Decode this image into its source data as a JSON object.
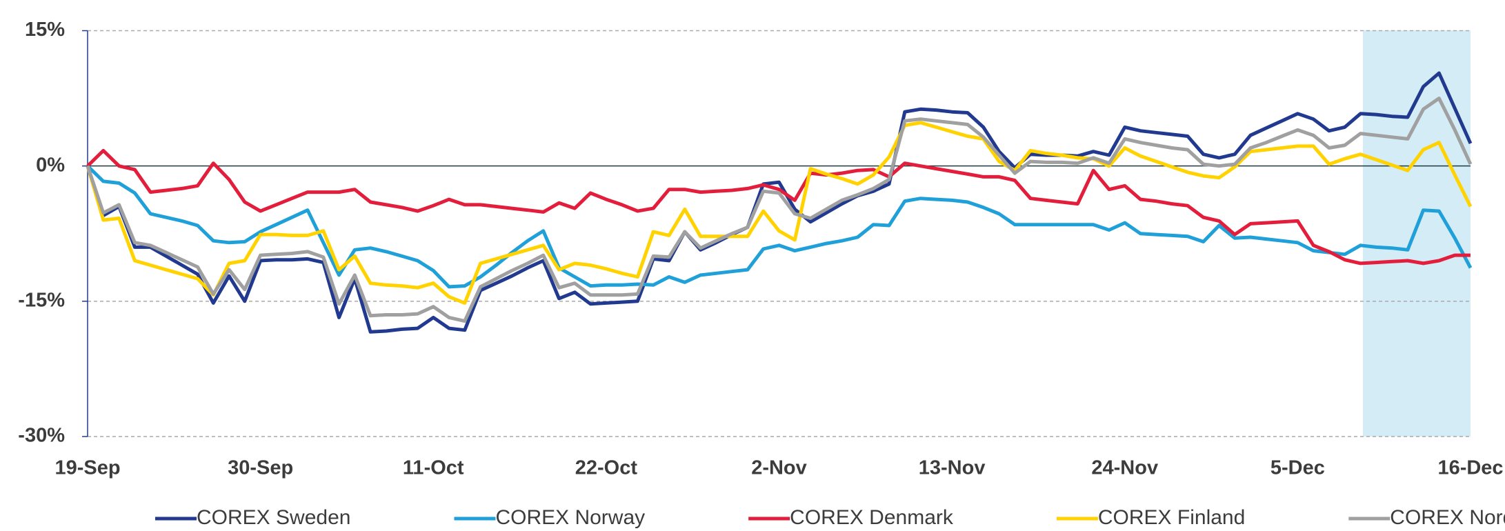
{
  "chart_data": {
    "type": "line",
    "categories": [
      "19-Sep",
      null,
      null,
      null,
      null,
      null,
      null,
      null,
      null,
      null,
      null,
      "30-Sep",
      null,
      null,
      null,
      null,
      null,
      null,
      null,
      null,
      null,
      null,
      "11-Oct",
      null,
      null,
      null,
      null,
      null,
      null,
      null,
      null,
      null,
      null,
      "22-Oct",
      null,
      null,
      null,
      null,
      null,
      null,
      null,
      null,
      null,
      null,
      "2-Nov",
      null,
      null,
      null,
      null,
      null,
      null,
      null,
      null,
      null,
      null,
      "13-Nov",
      null,
      null,
      null,
      null,
      null,
      null,
      null,
      null,
      null,
      null,
      "24-Nov",
      null,
      null,
      null,
      null,
      null,
      null,
      null,
      null,
      null,
      null,
      "5-Dec",
      null,
      null,
      null,
      null,
      null,
      null,
      null,
      null,
      null,
      null,
      "16-Dec"
    ],
    "series": [
      {
        "name": "COREX Sweden",
        "color": "#213a8f",
        "values": [
          0,
          -5.5,
          -4.5,
          -9,
          -9,
          -10,
          -11,
          -12,
          -15.2,
          -12.2,
          -15,
          -10.5,
          -10.4,
          -10.4,
          -10.3,
          -10.7,
          -16.8,
          -12.5,
          -18.4,
          -18.3,
          -18.1,
          -18,
          -16.8,
          -18,
          -18.2,
          -13.8,
          -13,
          -12.2,
          -11.3,
          -10.5,
          -14.7,
          -14,
          -15.3,
          -15.2,
          -15.1,
          -15,
          -10.3,
          -10.5,
          -7.3,
          -9.3,
          -8.5,
          -7.6,
          -6.8,
          -2,
          -1.8,
          -4.8,
          -6.2,
          -5.2,
          -4.2,
          -3.3,
          -2.8,
          -2,
          6,
          6.3,
          6.2,
          6,
          5.9,
          4.3,
          1.6,
          -0.2,
          1.3,
          1.2,
          1.2,
          1.1,
          1.6,
          1.2,
          4.3,
          3.9,
          3.7,
          3.5,
          3.3,
          1.3,
          0.9,
          1.3,
          3.4,
          4.2,
          5,
          5.8,
          5.2,
          3.9,
          4.3,
          5.8,
          5.7,
          5.5,
          5.4,
          8.8,
          10.3,
          6.4,
          2.5
        ]
      },
      {
        "name": "COREX Norway",
        "color": "#1fa0d8",
        "values": [
          0,
          -1.7,
          -1.9,
          -3,
          -5.3,
          -5.7,
          -6.1,
          -6.6,
          -8.3,
          -8.5,
          -8.4,
          -7.3,
          -6.5,
          -5.7,
          -4.9,
          -8.5,
          -12.1,
          -9.3,
          -9.1,
          -9.5,
          -10,
          -10.5,
          -11.6,
          -13.4,
          -13.3,
          -12.3,
          -11,
          -9.6,
          -8.3,
          -7.2,
          -11.3,
          -12.3,
          -13.3,
          -13.2,
          -13.2,
          -13.1,
          -13.2,
          -12.3,
          -12.9,
          -12.1,
          -11.9,
          -11.7,
          -11.5,
          -9.2,
          -8.8,
          -9.4,
          -9,
          -8.6,
          -8.3,
          -7.9,
          -6.5,
          -6.6,
          -3.9,
          -3.6,
          -3.7,
          -3.8,
          -4,
          -4.6,
          -5.3,
          -6.5,
          -6.5,
          -6.5,
          -6.5,
          -6.5,
          -6.5,
          -7.1,
          -6.3,
          -7.5,
          -7.6,
          -7.7,
          -7.8,
          -8.4,
          -6.6,
          -8,
          -7.9,
          -8.1,
          -8.3,
          -8.5,
          -9.4,
          -9.6,
          -9.8,
          -8.8,
          -9,
          -9.1,
          -9.3,
          -4.9,
          -5,
          -8,
          -11.3
        ]
      },
      {
        "name": "COREX Denmark",
        "color": "#e31e3c",
        "values": [
          0,
          1.7,
          0,
          -0.4,
          -2.9,
          -2.7,
          -2.5,
          -2.2,
          0.3,
          -1.5,
          -4,
          -5,
          -4.3,
          -3.6,
          -2.9,
          -2.9,
          -2.9,
          -2.6,
          -4,
          -4.3,
          -4.6,
          -5,
          -4.4,
          -3.7,
          -4.3,
          -4.3,
          -4.5,
          -4.7,
          -4.9,
          -5.1,
          -4.1,
          -4.7,
          -3,
          -3.7,
          -4.3,
          -5,
          -4.7,
          -2.6,
          -2.6,
          -2.9,
          -2.8,
          -2.7,
          -2.5,
          -2.1,
          -2.6,
          -3.8,
          -0.8,
          -1,
          -0.8,
          -0.5,
          -0.4,
          -1.2,
          0.3,
          0,
          -0.3,
          -0.6,
          -0.9,
          -1.2,
          -1.2,
          -1.6,
          -3.6,
          -3.8,
          -4,
          -4.2,
          -0.5,
          -2.6,
          -2.2,
          -3.7,
          -3.9,
          -4.2,
          -4.4,
          -5.7,
          -6.1,
          -7.6,
          -6.4,
          -6.3,
          -6.2,
          -6.1,
          -8.8,
          -9.5,
          -10.4,
          -10.8,
          -10.7,
          -10.6,
          -10.5,
          -10.8,
          -10.5,
          -9.9,
          -9.9
        ]
      },
      {
        "name": "COREX Finland",
        "color": "#ffd200",
        "values": [
          0,
          -6,
          -5.8,
          -10.5,
          -11,
          -11.5,
          -12,
          -12.5,
          -14.3,
          -10.8,
          -10.5,
          -7.6,
          -7.6,
          -7.7,
          -7.7,
          -7.2,
          -11.5,
          -10,
          -13,
          -13.2,
          -13.3,
          -13.5,
          -13,
          -14.5,
          -15.2,
          -10.8,
          -10.3,
          -9.8,
          -9.3,
          -8.8,
          -11.5,
          -10.8,
          -11,
          -11.4,
          -11.9,
          -12.3,
          -7.3,
          -7.7,
          -4.8,
          -7.8,
          -7.8,
          -7.8,
          -7.8,
          -5,
          -7.2,
          -8.2,
          -0.3,
          -0.9,
          -1.4,
          -2,
          -1,
          1,
          4.5,
          4.8,
          4.3,
          3.8,
          3.3,
          3,
          0.5,
          -0.5,
          1.7,
          1.4,
          1.2,
          0.9,
          0.8,
          0,
          2,
          1.1,
          0.5,
          -0.1,
          -0.7,
          -1.1,
          -1.3,
          -0.1,
          1.6,
          1.8,
          2,
          2.2,
          2.2,
          0.2,
          0.8,
          1.3,
          0.7,
          0.1,
          -0.5,
          1.8,
          2.6,
          -1,
          -4.5
        ]
      },
      {
        "name": "COREX Nordics",
        "color": "#a0a0a0",
        "values": [
          0,
          -5.2,
          -4.3,
          -8.5,
          -8.8,
          -9.6,
          -10.4,
          -11.2,
          -14.2,
          -11.5,
          -13.7,
          -9.9,
          -9.8,
          -9.7,
          -9.5,
          -10.1,
          -15.3,
          -12.1,
          -16.6,
          -16.5,
          -16.5,
          -16.4,
          -15.6,
          -16.8,
          -17.2,
          -13.4,
          -12.5,
          -11.6,
          -10.8,
          -9.9,
          -13.5,
          -13,
          -14.3,
          -14.3,
          -14.3,
          -14.2,
          -10,
          -10.1,
          -7.3,
          -9.1,
          -8.3,
          -7.5,
          -6.8,
          -2.8,
          -3,
          -5.3,
          -5.8,
          -4.8,
          -3.8,
          -3.2,
          -2.5,
          -1.5,
          5,
          5.2,
          5,
          4.8,
          4.6,
          3.2,
          1.2,
          -0.8,
          0.5,
          0.4,
          0.4,
          0.3,
          0.9,
          0.3,
          3,
          2.6,
          2.3,
          2,
          1.8,
          0.2,
          0,
          0.2,
          2,
          2.6,
          3.3,
          4,
          3.4,
          2,
          2.3,
          3.6,
          3.4,
          3.2,
          3,
          6.3,
          7.5,
          4,
          0.2
        ]
      }
    ],
    "ylim": [
      -30,
      15
    ],
    "yticks": [
      {
        "value": -30,
        "label": "-30%"
      },
      {
        "value": -15,
        "label": "-15%"
      },
      {
        "value": 0,
        "label": "0%"
      },
      {
        "value": 15,
        "label": "15%"
      }
    ],
    "grid": true,
    "legend": "bottom"
  }
}
